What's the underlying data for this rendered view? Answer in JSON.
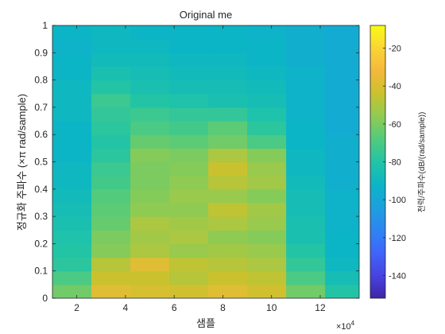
{
  "window": {
    "background": "#ffffff"
  },
  "chart_data": {
    "type": "heatmap",
    "title": "Original me",
    "xlabel": "샘플",
    "ylabel": "정규화 주파수 (×π rad/sample)",
    "x_exponent_base": "×10",
    "x_exponent_power": "4",
    "xlim": [
      1.0,
      13.6
    ],
    "ylim": [
      0,
      1
    ],
    "xticks": [
      2,
      4,
      6,
      8,
      10,
      12
    ],
    "yticks": [
      0,
      0.1,
      0.2,
      0.3,
      0.4,
      0.5,
      0.6,
      0.7,
      0.8,
      0.9,
      1
    ],
    "colorbar": {
      "label": "전력/주파수(dB/(rad/sample))",
      "clim": [
        -152,
        -8
      ],
      "ticks": [
        -20,
        -40,
        -60,
        -80,
        -100,
        -120,
        -140
      ],
      "colormap": [
        "#3e26a8",
        "#4743e0",
        "#3f65fa",
        "#2d85f2",
        "#1ca0de",
        "#0bb5c5",
        "#23c4a5",
        "#52cb7d",
        "#8fcb53",
        "#c9c22e",
        "#f4b83b",
        "#fad536",
        "#f9fb15"
      ]
    },
    "time_segments": [
      {
        "x_start": 1.0,
        "x_end": 2.6
      },
      {
        "x_start": 2.6,
        "x_end": 4.2
      },
      {
        "x_start": 4.2,
        "x_end": 5.8
      },
      {
        "x_start": 5.8,
        "x_end": 7.4
      },
      {
        "x_start": 7.4,
        "x_end": 9.0
      },
      {
        "x_start": 9.0,
        "x_end": 10.6
      },
      {
        "x_start": 10.6,
        "x_end": 12.2
      },
      {
        "x_start": 12.2,
        "x_end": 13.6
      }
    ],
    "frequency_bands": [
      0,
      0.05,
      0.1,
      0.15,
      0.2,
      0.25,
      0.3,
      0.35,
      0.4,
      0.45,
      0.5,
      0.55,
      0.6,
      0.65,
      0.7,
      0.75,
      0.8,
      0.85,
      0.9,
      0.95
    ],
    "band_width": 0.05,
    "power_db": [
      [
        -62,
        -70,
        -78,
        -80,
        -82,
        -84,
        -86,
        -88,
        -90,
        -90,
        -92,
        -92,
        -92,
        -90,
        -90,
        -90,
        -92,
        -92,
        -94,
        -92
      ],
      [
        -38,
        -44,
        -48,
        -58,
        -60,
        -64,
        -66,
        -68,
        -72,
        -74,
        -78,
        -80,
        -78,
        -76,
        -74,
        -80,
        -84,
        -88,
        -90,
        -90
      ],
      [
        -40,
        -44,
        -38,
        -50,
        -52,
        -50,
        -56,
        -58,
        -60,
        -60,
        -58,
        -64,
        -70,
        -74,
        -80,
        -84,
        -86,
        -88,
        -90,
        -92
      ],
      [
        -42,
        -48,
        -46,
        -54,
        -50,
        -52,
        -56,
        -54,
        -56,
        -58,
        -60,
        -66,
        -72,
        -76,
        -82,
        -86,
        -88,
        -90,
        -92,
        -92
      ],
      [
        -38,
        -44,
        -48,
        -52,
        -56,
        -50,
        -46,
        -54,
        -48,
        -44,
        -50,
        -62,
        -66,
        -76,
        -84,
        -86,
        -88,
        -90,
        -92,
        -92
      ],
      [
        -42,
        -46,
        -50,
        -54,
        -58,
        -54,
        -52,
        -58,
        -52,
        -54,
        -58,
        -70,
        -78,
        -82,
        -86,
        -88,
        -90,
        -92,
        -92,
        -94
      ],
      [
        -62,
        -70,
        -76,
        -80,
        -84,
        -84,
        -86,
        -86,
        -88,
        -90,
        -90,
        -92,
        -92,
        -94,
        -94,
        -94,
        -94,
        -96,
        -96,
        -96
      ],
      [
        -80,
        -86,
        -90,
        -92,
        -92,
        -94,
        -94,
        -94,
        -96,
        -96,
        -96,
        -96,
        -98,
        -98,
        -98,
        -98,
        -98,
        -98,
        -98,
        -98
      ]
    ]
  }
}
